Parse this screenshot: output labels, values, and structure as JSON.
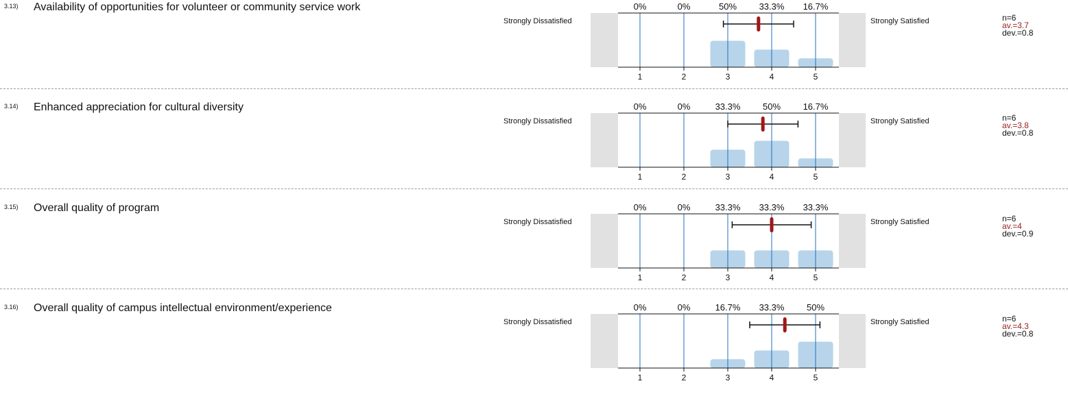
{
  "scale": {
    "left_label": "Strongly Dissatisfied",
    "right_label": "Strongly Satisfied",
    "ticks": [
      "1",
      "2",
      "3",
      "4",
      "5"
    ]
  },
  "items": [
    {
      "number": "3.13)",
      "question": "Availability of opportunities for volunteer or community service work",
      "n": "n=6",
      "av": "av.=3.7",
      "dev": "dev.=0.8",
      "percent_labels": [
        "0%",
        "0%",
        "50%",
        "33.3%",
        "16.7%"
      ]
    },
    {
      "number": "3.14)",
      "question": "Enhanced appreciation for cultural diversity",
      "n": "n=6",
      "av": "av.=3.8",
      "dev": "dev.=0.8",
      "percent_labels": [
        "0%",
        "0%",
        "33.3%",
        "50%",
        "16.7%"
      ]
    },
    {
      "number": "3.15)",
      "question": "Overall quality of program",
      "n": "n=6",
      "av": "av.=4",
      "dev": "dev.=0.9",
      "percent_labels": [
        "0%",
        "0%",
        "33.3%",
        "33.3%",
        "33.3%"
      ]
    },
    {
      "number": "3.16)",
      "question": "Overall quality of campus intellectual environment/experience",
      "n": "n=6",
      "av": "av.=4.3",
      "dev": "dev.=0.8",
      "percent_labels": [
        "0%",
        "0%",
        "16.7%",
        "33.3%",
        "50%"
      ]
    }
  ],
  "colors": {
    "bar": "#b7d4ea",
    "gridline": "#1f6fbf",
    "mean_marker": "#a01818",
    "side_box": "#e1e1e1",
    "average_text": "#9b1c1c"
  },
  "chart_data": [
    {
      "type": "bar",
      "categories": [
        1,
        2,
        3,
        4,
        5
      ],
      "values": [
        0,
        0,
        50,
        33.3,
        16.7
      ],
      "mean": 3.7,
      "dev": 0.8,
      "n": 6,
      "xlim": [
        1,
        5
      ]
    },
    {
      "type": "bar",
      "categories": [
        1,
        2,
        3,
        4,
        5
      ],
      "values": [
        0,
        0,
        33.3,
        50,
        16.7
      ],
      "mean": 3.8,
      "dev": 0.8,
      "n": 6,
      "xlim": [
        1,
        5
      ]
    },
    {
      "type": "bar",
      "categories": [
        1,
        2,
        3,
        4,
        5
      ],
      "values": [
        0,
        0,
        33.3,
        33.3,
        33.3
      ],
      "mean": 4.0,
      "dev": 0.9,
      "n": 6,
      "xlim": [
        1,
        5
      ]
    },
    {
      "type": "bar",
      "categories": [
        1,
        2,
        3,
        4,
        5
      ],
      "values": [
        0,
        0,
        16.7,
        33.3,
        50
      ],
      "mean": 4.3,
      "dev": 0.8,
      "n": 6,
      "xlim": [
        1,
        5
      ]
    }
  ]
}
